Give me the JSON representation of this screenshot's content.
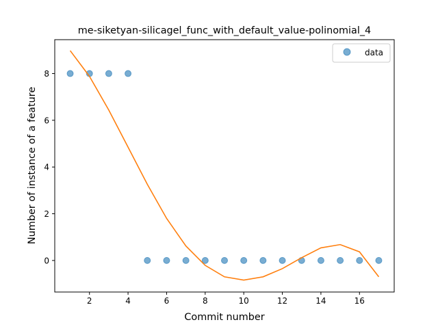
{
  "chart_data": {
    "type": "scatter",
    "title": "me-siketyan-silicagel_func_with_default_value-polinomial_4",
    "xlabel": "Commit number",
    "ylabel": "Number of instance of a feature",
    "xlim": [
      0.2,
      17.8
    ],
    "ylim": [
      -1.35,
      9.45
    ],
    "xticks": [
      2,
      4,
      6,
      8,
      10,
      12,
      14,
      16
    ],
    "yticks": [
      0,
      2,
      4,
      6,
      8
    ],
    "grid": false,
    "legend_position": "top-right",
    "series": [
      {
        "name": "data",
        "kind": "scatter",
        "color": "#1f77b4",
        "x": [
          1,
          2,
          3,
          4,
          5,
          6,
          7,
          8,
          9,
          10,
          11,
          12,
          13,
          14,
          15,
          16,
          17
        ],
        "y": [
          8,
          8,
          8,
          8,
          0,
          0,
          0,
          0,
          0,
          0,
          0,
          0,
          0,
          0,
          0,
          0,
          0
        ]
      },
      {
        "kind": "line",
        "color": "#ff7f0e",
        "x": [
          1,
          2,
          3,
          4,
          5,
          6,
          7,
          8,
          9,
          10,
          11,
          12,
          13,
          14,
          15,
          16,
          17
        ],
        "y": [
          8.98,
          7.88,
          6.44,
          4.85,
          3.26,
          1.8,
          0.62,
          -0.21,
          -0.7,
          -0.84,
          -0.7,
          -0.35,
          0.12,
          0.54,
          0.68,
          0.37,
          -0.7
        ]
      }
    ]
  }
}
